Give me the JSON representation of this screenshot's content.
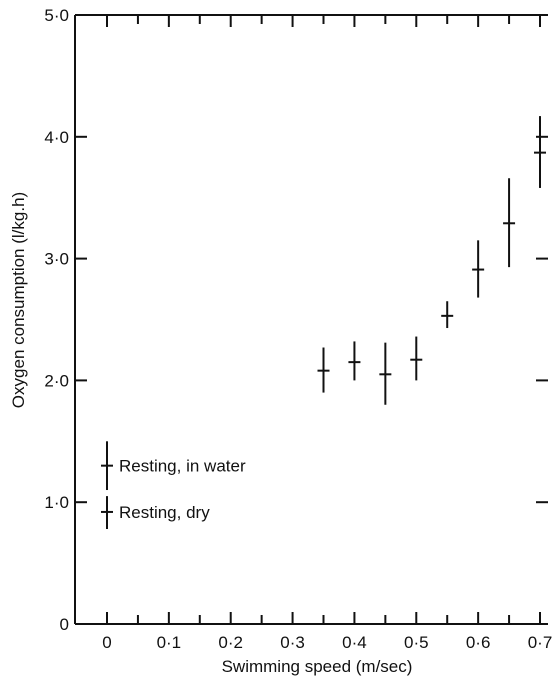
{
  "chart_data": {
    "type": "scatter",
    "title": "",
    "xlabel": "Swimming speed (m/sec)",
    "ylabel": "Oxygen consumption (l/kg.h)",
    "xlim": [
      0,
      0.7
    ],
    "ylim": [
      0,
      5.0
    ],
    "x_ticks": [
      0,
      0.1,
      0.2,
      0.3,
      0.4,
      0.5,
      0.6,
      0.7
    ],
    "x_tick_labels": [
      "0",
      "0·1",
      "0·2",
      "0·3",
      "0·4",
      "0·5",
      "0·6",
      "0·7"
    ],
    "y_ticks": [
      0,
      1.0,
      2.0,
      3.0,
      4.0,
      5.0
    ],
    "y_tick_labels": [
      "0",
      "1·0",
      "2·0",
      "3·0",
      "4·0",
      "5·0"
    ],
    "grid": false,
    "series": [
      {
        "points": [
          {
            "x": 0.35,
            "y": 2.08,
            "low": 1.9,
            "high": 2.27
          },
          {
            "x": 0.4,
            "y": 2.15,
            "low": 2.0,
            "high": 2.32
          },
          {
            "x": 0.45,
            "y": 2.05,
            "low": 1.8,
            "high": 2.31
          },
          {
            "x": 0.5,
            "y": 2.17,
            "low": 2.0,
            "high": 2.36
          },
          {
            "x": 0.55,
            "y": 2.53,
            "low": 2.43,
            "high": 2.65
          },
          {
            "x": 0.6,
            "y": 2.91,
            "low": 2.68,
            "high": 3.15
          },
          {
            "x": 0.65,
            "y": 3.29,
            "low": 2.93,
            "high": 3.66
          },
          {
            "x": 0.7,
            "y": 3.87,
            "low": 3.58,
            "high": 4.17
          }
        ]
      },
      {
        "points": [
          {
            "x": 0,
            "y": 1.3,
            "low": 1.1,
            "high": 1.5,
            "label": "Resting, in water"
          },
          {
            "x": 0,
            "y": 0.92,
            "low": 0.78,
            "high": 1.05,
            "label": "Resting, dry"
          }
        ]
      }
    ]
  }
}
